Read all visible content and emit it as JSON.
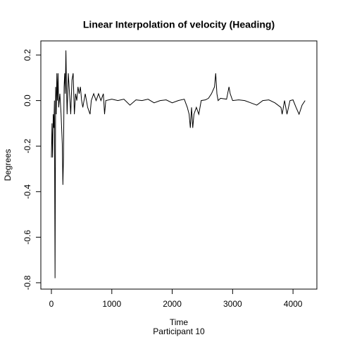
{
  "chart_data": {
    "type": "line",
    "title": "Linear Interpolation of velocity (Heading)",
    "xlabel": "Time",
    "ylabel": "Degrees",
    "subtitle": "Participant  10",
    "color": "#000000",
    "xlim": [
      -175,
      4395
    ],
    "ylim": [
      -0.828,
      0.262
    ],
    "xticks": [
      0,
      1000,
      2000,
      3000,
      4000
    ],
    "yticks": [
      -0.8,
      -0.6,
      -0.4,
      -0.2,
      {
        "value": 0,
        "label": "0.0"
      },
      0.2
    ],
    "x": [
      0,
      10,
      20,
      30,
      40,
      50,
      60,
      70,
      80,
      90,
      100,
      110,
      120,
      140,
      160,
      180,
      190,
      200,
      210,
      220,
      230,
      240,
      250,
      260,
      280,
      300,
      320,
      340,
      360,
      380,
      400,
      420,
      440,
      460,
      480,
      500,
      520,
      560,
      600,
      640,
      660,
      700,
      740,
      780,
      820,
      860,
      880,
      900,
      1000,
      1100,
      1200,
      1300,
      1400,
      1500,
      1600,
      1700,
      1800,
      1900,
      2000,
      2100,
      2200,
      2250,
      2280,
      2300,
      2320,
      2340,
      2360,
      2400,
      2440,
      2480,
      2550,
      2600,
      2650,
      2700,
      2720,
      2740,
      2760,
      2800,
      2900,
      2940,
      2960,
      3000,
      3100,
      3200,
      3300,
      3400,
      3500,
      3600,
      3700,
      3800,
      3820,
      3860,
      3900,
      3950,
      4000,
      4050,
      4100,
      4150,
      4200
    ],
    "values": [
      -0.25,
      -0.1,
      -0.25,
      -0.06,
      -0.12,
      0,
      -0.78,
      0.06,
      -0.06,
      0.12,
      0,
      0.12,
      -0.03,
      0.03,
      -0.06,
      -0.19,
      -0.37,
      -0.25,
      0.06,
      0.12,
      0.03,
      0.22,
      0.06,
      -0.06,
      0.12,
      0.03,
      -0.06,
      0.09,
      0.12,
      -0.06,
      0.03,
      0,
      0.06,
      0.03,
      0.06,
      0,
      -0.03,
      0.03,
      -0.03,
      -0.06,
      0,
      0.03,
      0,
      0.03,
      0,
      0.03,
      -0.06,
      0,
      0.006,
      0,
      0.006,
      -0.02,
      0.003,
      0,
      0.006,
      -0.01,
      0,
      0.003,
      -0.01,
      0,
      0.006,
      -0.03,
      -0.06,
      -0.12,
      -0.03,
      -0.12,
      -0.06,
      -0.03,
      -0.06,
      0,
      0.003,
      0.01,
      0.03,
      0.06,
      0.12,
      0.03,
      0,
      0.01,
      0.006,
      0.06,
      0.03,
      0,
      0.003,
      0,
      -0.01,
      -0.02,
      0,
      0.003,
      -0.01,
      -0.03,
      -0.06,
      0,
      -0.06,
      0,
      0.003,
      -0.03,
      -0.06,
      -0.02,
      0
    ]
  }
}
